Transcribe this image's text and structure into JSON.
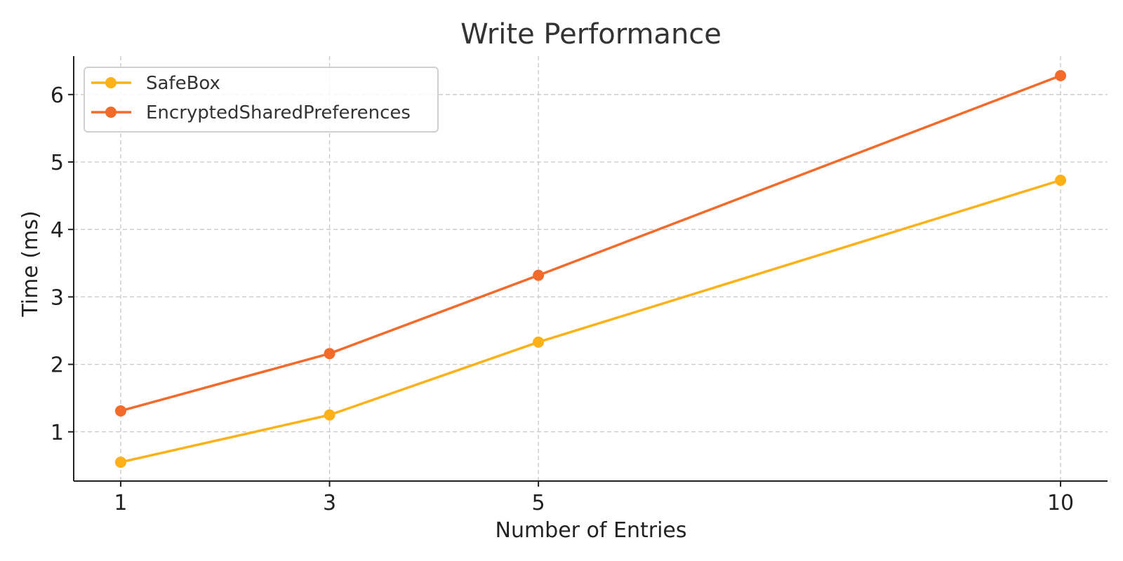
{
  "chart_data": {
    "type": "line",
    "title": "Write Performance",
    "xlabel": "Number of Entries",
    "ylabel": "Time (ms)",
    "x": [
      1,
      3,
      5,
      10
    ],
    "x_ticks": [
      "1",
      "3",
      "5",
      "10"
    ],
    "y_ticks": [
      "1",
      "2",
      "3",
      "4",
      "5",
      "6"
    ],
    "xlim": [
      0.55,
      10.45
    ],
    "ylim": [
      0.27,
      6.57
    ],
    "grid": true,
    "legend_position": "top-left",
    "series": [
      {
        "name": "SafeBox",
        "color": "#FBB117",
        "values": [
          0.55,
          1.25,
          2.33,
          4.73
        ]
      },
      {
        "name": "EncryptedSharedPreferences",
        "color": "#F26B2A",
        "values": [
          1.31,
          2.16,
          3.32,
          6.28
        ]
      }
    ]
  }
}
